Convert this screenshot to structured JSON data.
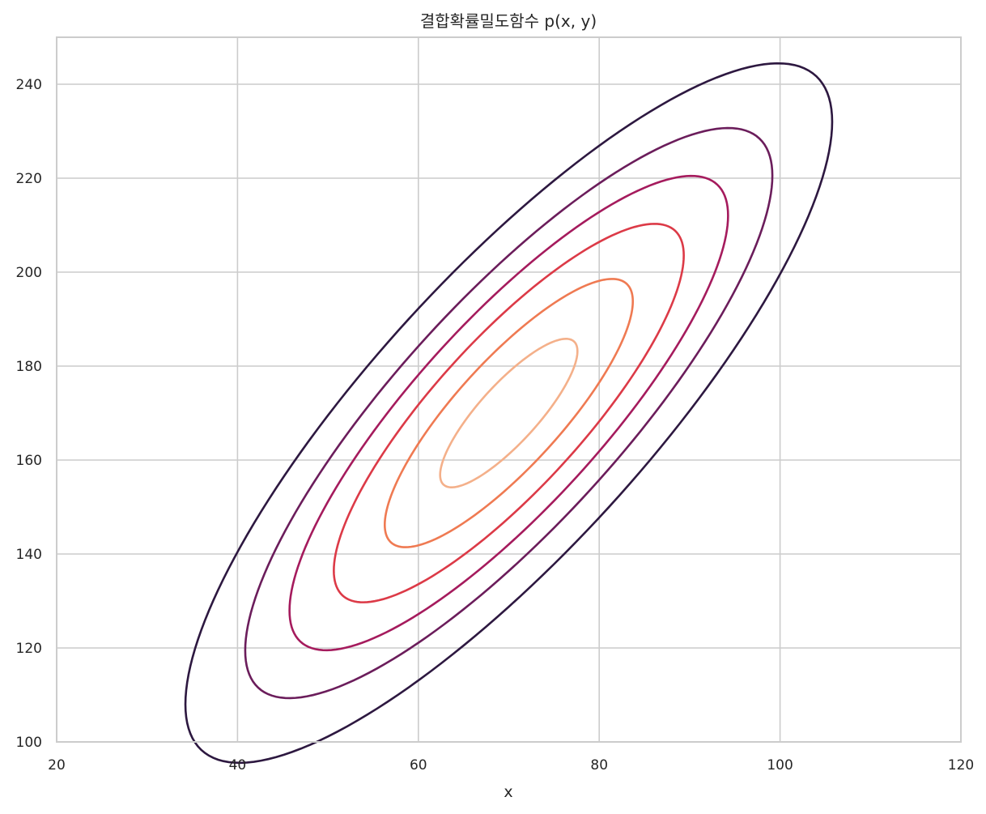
{
  "chart_data": {
    "type": "contour",
    "title": "결합확률밀도함수 p(x, y)",
    "xlabel": "x",
    "ylabel": "",
    "xlim": [
      20,
      120
    ],
    "ylim": [
      100,
      250
    ],
    "xticks": [
      20,
      40,
      60,
      80,
      100,
      120
    ],
    "yticks": [
      100,
      120,
      140,
      160,
      180,
      200,
      220,
      240
    ],
    "grid": true,
    "distribution": {
      "mean": [
        70,
        170
      ],
      "cov": [
        [
          150,
          260
        ],
        [
          260,
          650
        ]
      ]
    },
    "levels": [
      {
        "k": 2.92,
        "color": "#2d1840"
      },
      {
        "k": 2.38,
        "color": "#6b1d5b"
      },
      {
        "k": 1.98,
        "color": "#a51b5d"
      },
      {
        "k": 1.58,
        "color": "#dc3a47"
      },
      {
        "k": 1.12,
        "color": "#ef7a52"
      },
      {
        "k": 0.62,
        "color": "#f4b08a"
      }
    ],
    "colors": {
      "grid": "#cccccc",
      "frame": "#cccccc",
      "text": "#262626"
    }
  }
}
